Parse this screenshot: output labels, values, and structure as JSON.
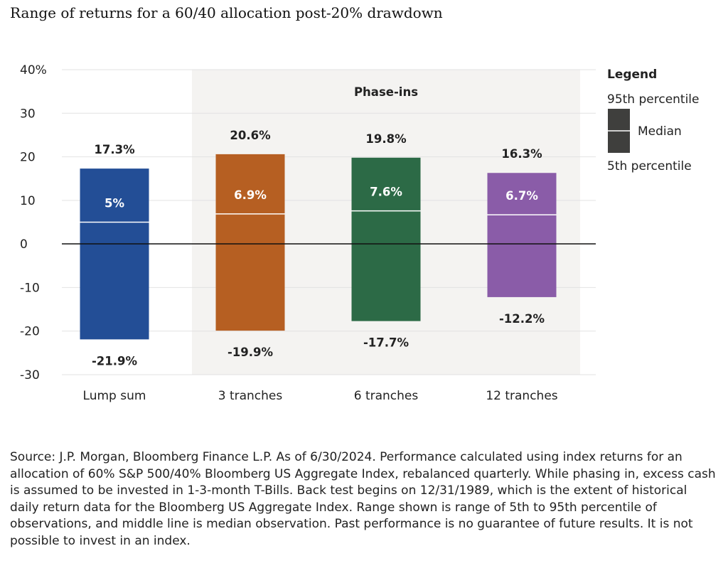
{
  "title": "Range of returns for a 60/40 allocation post-20% drawdown",
  "chart_data": {
    "type": "bar",
    "title": "Range of returns for a 60/40 allocation post-20% drawdown",
    "categories": [
      "Lump sum",
      "3 tranches",
      "6 tranches",
      "12 tranches"
    ],
    "series": [
      {
        "name": "95th percentile",
        "values": [
          17.3,
          20.6,
          19.8,
          16.3
        ]
      },
      {
        "name": "Median",
        "values": [
          5,
          6.9,
          7.6,
          6.7
        ]
      },
      {
        "name": "5th percentile",
        "values": [
          -21.9,
          -19.9,
          -17.7,
          -12.2
        ]
      }
    ],
    "high_labels": [
      "17.3%",
      "20.6%",
      "19.8%",
      "16.3%"
    ],
    "median_labels": [
      "5%",
      "6.9%",
      "7.6%",
      "6.7%"
    ],
    "low_labels": [
      "-21.9%",
      "-19.9%",
      "-17.7%",
      "-12.2%"
    ],
    "colors": [
      "#234e96",
      "#b65f22",
      "#2c6a46",
      "#8a5ca8"
    ],
    "ylim": [
      -30,
      40
    ],
    "yticks": [
      40,
      30,
      20,
      10,
      0,
      -10,
      -20,
      -30
    ],
    "ytick_labels": [
      "40%",
      "30",
      "20",
      "10",
      "0",
      "-10",
      "-20",
      "-30"
    ],
    "xlabel": "",
    "ylabel": "",
    "grid": true,
    "annotation": "Phase-ins",
    "legend": {
      "title": "Legend",
      "top": "95th percentile",
      "middle": "Median",
      "bottom": "5th percentile",
      "swatch_color": "#3f3f3d",
      "placement": "right"
    }
  },
  "source": "Source: J.P. Morgan, Bloomberg Finance L.P. As of 6/30/2024. Performance calculated using index returns for an allocation of 60% S&P 500/40% Bloomberg US Aggregate Index, rebalanced quarterly. While phasing in, excess cash is assumed to be invested in 1-3-month T-Bills. Back test begins on 12/31/1989, which is the extent of historical daily return data for the Bloomberg US Aggregate Index. Range shown is range of 5th to 95th percentile of observations, and middle line is median observation. Past performance is no guarantee of future results. It is not possible to invest in an index."
}
